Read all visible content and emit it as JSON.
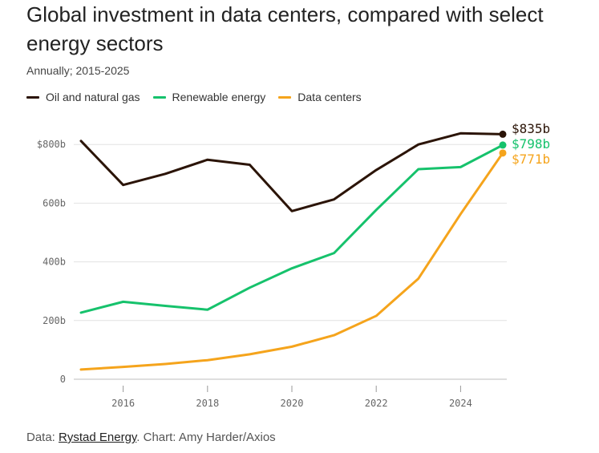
{
  "chart_data": {
    "type": "line",
    "title": "Global investment in data centers, compared with select energy sectors",
    "subtitle": "Annually; 2015-2025",
    "x": [
      2015,
      2016,
      2017,
      2018,
      2019,
      2020,
      2021,
      2022,
      2023,
      2024,
      2025
    ],
    "xticks": [
      "2016",
      "2018",
      "2020",
      "2022",
      "2024"
    ],
    "xlim": [
      2015,
      2025
    ],
    "ylim": [
      0,
      860
    ],
    "yticks": [
      {
        "value": 0,
        "label": "0"
      },
      {
        "value": 200,
        "label": "200b"
      },
      {
        "value": 400,
        "label": "400b"
      },
      {
        "value": 600,
        "label": "600b"
      },
      {
        "value": 800,
        "label": "$800b"
      }
    ],
    "grid": true,
    "legend_position": "top-left",
    "series": [
      {
        "name": "Oil and natural gas",
        "color": "#2b1407",
        "values": [
          812,
          662,
          700,
          748,
          731,
          573,
          613,
          713,
          800,
          838,
          835
        ],
        "end_label": "$835b"
      },
      {
        "name": "Renewable energy",
        "color": "#16c26c",
        "values": [
          227,
          264,
          250,
          237,
          312,
          378,
          430,
          577,
          716,
          723,
          798
        ],
        "end_label": "$798b"
      },
      {
        "name": "Data centers",
        "color": "#f5a41c",
        "values": [
          33,
          42,
          52,
          65,
          85,
          111,
          150,
          216,
          343,
          563,
          771
        ],
        "end_label": "$771b"
      }
    ]
  },
  "source": {
    "prefix": "Data: ",
    "link_text": "Rystad Energy",
    "suffix": ". Chart: Amy Harder/Axios"
  }
}
